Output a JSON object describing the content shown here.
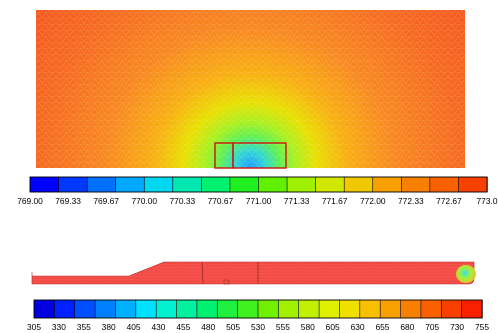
{
  "top_plot": {
    "colorbar": {
      "min": 769.0,
      "max": 773.0,
      "colors": [
        "#0000ff",
        "#0038ff",
        "#0070ff",
        "#00a8ff",
        "#00d8f0",
        "#00e8b0",
        "#00f070",
        "#20f020",
        "#60f000",
        "#a0f000",
        "#d0e800",
        "#f0c800",
        "#f8a000",
        "#f88000",
        "#f86000",
        "#f84000"
      ],
      "tick_labels": [
        "769.00",
        "769.33",
        "769.67",
        "770.00",
        "770.33",
        "770.67",
        "771.00",
        "771.33",
        "771.67",
        "772.00",
        "772.33",
        "772.67",
        "773.0"
      ]
    },
    "field_color": "#f4541e",
    "highlight_boxes": 2
  },
  "bottom_plot": {
    "colorbar": {
      "min": 305,
      "max": 755,
      "colors": [
        "#0000e0",
        "#0020ff",
        "#0050ff",
        "#0080ff",
        "#00b0ff",
        "#00e0ff",
        "#00f0d0",
        "#00f0a0",
        "#00f070",
        "#20f040",
        "#40f020",
        "#70f000",
        "#a0f000",
        "#c0f000",
        "#e0f000",
        "#f0e000",
        "#f8c000",
        "#f8a000",
        "#f88000",
        "#f86000",
        "#f84000",
        "#f82000"
      ],
      "tick_labels": [
        "305",
        "330",
        "355",
        "380",
        "405",
        "430",
        "455",
        "480",
        "505",
        "530",
        "555",
        "580",
        "605",
        "630",
        "655",
        "680",
        "705",
        "730",
        "755"
      ]
    },
    "shape_color": "#f4423c"
  }
}
